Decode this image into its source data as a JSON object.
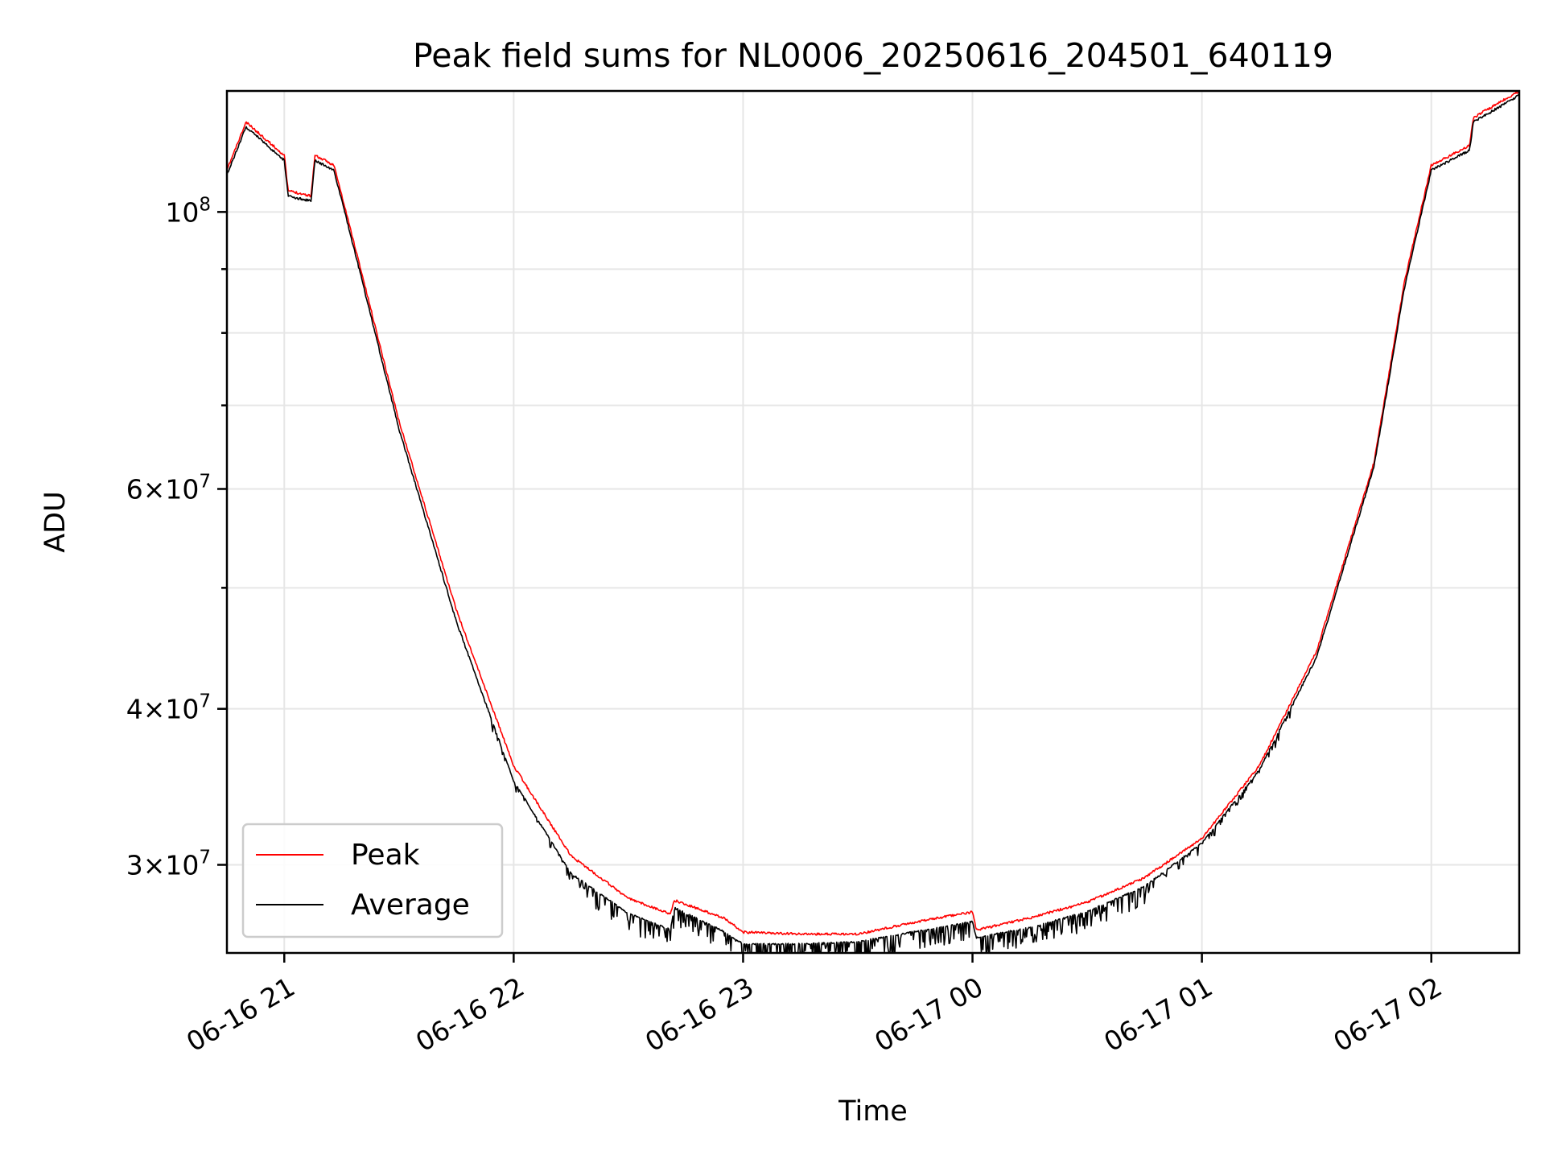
{
  "chart_data": {
    "type": "line",
    "title": "Peak field sums for NL0006_20250616_204501_640119",
    "xlabel": "Time",
    "ylabel": "ADU",
    "yscale": "log",
    "xlim": [
      "2025-06-16 20:45",
      "2025-06-17 02:23"
    ],
    "ylim": [
      25500000,
      125000000
    ],
    "x_ticks": [
      "06-16 21",
      "06-16 22",
      "06-16 23",
      "06-17 00",
      "06-17 01",
      "06-17 02"
    ],
    "y_ticks": [
      {
        "value": 100000000,
        "mantissa": "",
        "exponent": "8",
        "base": "10"
      },
      {
        "value": 60000000,
        "mantissa": "6",
        "exponent": "7",
        "base": "10"
      },
      {
        "value": 40000000,
        "mantissa": "4",
        "exponent": "7",
        "base": "10"
      },
      {
        "value": 30000000,
        "mantissa": "3",
        "exponent": "7",
        "base": "10"
      }
    ],
    "grid": true,
    "legend_position": "lower-left",
    "series": [
      {
        "name": "Peak",
        "color": "#ff0000",
        "x": [
          "2025-06-16 20:45",
          "2025-06-16 20:50",
          "2025-06-16 21:00",
          "2025-06-16 21:01",
          "2025-06-16 21:07",
          "2025-06-16 21:08",
          "2025-06-16 21:13",
          "2025-06-16 21:20",
          "2025-06-16 21:30",
          "2025-06-16 21:45",
          "2025-06-16 22:00",
          "2025-06-16 22:15",
          "2025-06-16 22:30",
          "2025-06-16 22:41",
          "2025-06-16 22:42",
          "2025-06-16 22:55",
          "2025-06-16 23:00",
          "2025-06-16 23:15",
          "2025-06-16 23:30",
          "2025-06-16 23:45",
          "2025-06-17 00:00",
          "2025-06-17 00:01",
          "2025-06-17 00:15",
          "2025-06-17 00:30",
          "2025-06-17 00:45",
          "2025-06-17 01:00",
          "2025-06-17 01:15",
          "2025-06-17 01:30",
          "2025-06-17 01:45",
          "2025-06-17 01:53",
          "2025-06-17 02:00",
          "2025-06-17 02:10",
          "2025-06-17 02:11",
          "2025-06-17 02:23"
        ],
        "values": [
          108000000,
          118000000,
          111000000,
          104000000,
          103000000,
          111000000,
          109000000,
          90000000,
          68000000,
          48000000,
          36000000,
          30500000,
          28200000,
          27400000,
          28100000,
          27200000,
          26500000,
          26400000,
          26400000,
          27000000,
          27500000,
          26600000,
          27200000,
          28000000,
          29300000,
          31500000,
          36000000,
          44500000,
          63000000,
          88000000,
          109000000,
          113000000,
          119000000,
          125000000
        ]
      },
      {
        "name": "Average",
        "color": "#000000",
        "x": [
          "2025-06-16 20:45",
          "2025-06-16 20:50",
          "2025-06-16 21:00",
          "2025-06-16 21:01",
          "2025-06-16 21:07",
          "2025-06-16 21:08",
          "2025-06-16 21:13",
          "2025-06-16 21:20",
          "2025-06-16 21:30",
          "2025-06-16 21:45",
          "2025-06-16 22:00",
          "2025-06-16 22:15",
          "2025-06-16 22:30",
          "2025-06-16 22:41",
          "2025-06-16 22:42",
          "2025-06-16 22:55",
          "2025-06-16 23:00",
          "2025-06-16 23:15",
          "2025-06-16 23:30",
          "2025-06-16 23:45",
          "2025-06-17 00:00",
          "2025-06-17 00:01",
          "2025-06-17 00:15",
          "2025-06-17 00:30",
          "2025-06-17 00:45",
          "2025-06-17 01:00",
          "2025-06-17 01:15",
          "2025-06-17 01:30",
          "2025-06-17 01:45",
          "2025-06-17 01:53",
          "2025-06-17 02:00",
          "2025-06-17 02:10",
          "2025-06-17 02:11",
          "2025-06-17 02:23"
        ],
        "values": [
          107000000,
          117000000,
          110000000,
          103000000,
          102000000,
          110000000,
          108000000,
          89000000,
          67000000,
          47000000,
          35000000,
          29500000,
          27400000,
          26600000,
          27700000,
          26500000,
          25900000,
          25900000,
          26000000,
          26500000,
          27000000,
          26200000,
          26700000,
          27500000,
          28800000,
          31200000,
          35700000,
          44000000,
          62500000,
          87000000,
          108000000,
          112000000,
          118000000,
          124000000
        ]
      }
    ]
  }
}
